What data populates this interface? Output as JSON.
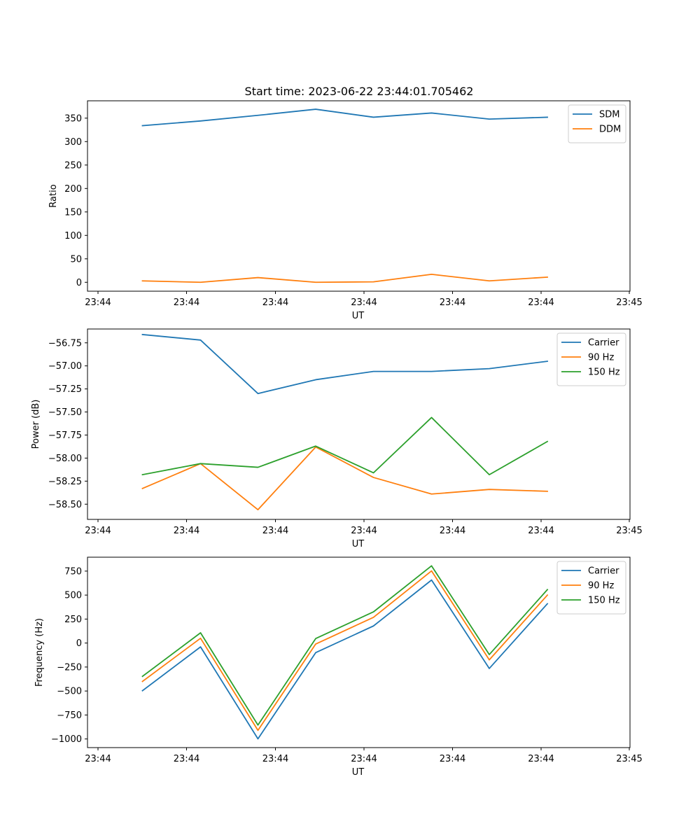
{
  "title": "Start time: 2023-06-22 23:44:01.705462",
  "chart_data": [
    {
      "type": "line",
      "title": "Start time: 2023-06-22 23:44:01.705462",
      "xlabel": "UT",
      "ylabel": "Ratio",
      "x_tick_labels": [
        "23:44",
        "23:44",
        "23:44",
        "23:44",
        "23:44",
        "23:44",
        "23:45"
      ],
      "y_ticks": [
        0,
        50,
        100,
        150,
        200,
        250,
        300,
        350
      ],
      "ylim": [
        -19,
        387
      ],
      "legend_position": "upper-right",
      "series": [
        {
          "name": "SDM",
          "color": "#1f77b4",
          "values": [
            334,
            344,
            356,
            369,
            352,
            361,
            348,
            352
          ]
        },
        {
          "name": "DDM",
          "color": "#ff7f0e",
          "values": [
            3,
            0,
            10,
            0,
            1,
            17,
            3,
            11
          ]
        }
      ]
    },
    {
      "type": "line",
      "title": "",
      "xlabel": "UT",
      "ylabel": "Power (dB)",
      "x_tick_labels": [
        "23:44",
        "23:44",
        "23:44",
        "23:44",
        "23:44",
        "23:44",
        "23:45"
      ],
      "y_ticks": [
        -58.5,
        -58.25,
        -58.0,
        -57.75,
        -57.5,
        -57.25,
        -57.0,
        -56.75
      ],
      "y_tick_labels": [
        "−58.50",
        "−58.25",
        "−58.00",
        "−57.75",
        "−57.50",
        "−57.25",
        "−57.00",
        "−56.75"
      ],
      "ylim": [
        -58.665,
        -56.6
      ],
      "legend_position": "upper-right",
      "series": [
        {
          "name": "Carrier",
          "color": "#1f77b4",
          "values": [
            -56.66,
            -56.72,
            -57.3,
            -57.15,
            -57.06,
            -57.06,
            -57.03,
            -56.95
          ]
        },
        {
          "name": "90 Hz",
          "color": "#ff7f0e",
          "values": [
            -58.33,
            -58.06,
            -58.56,
            -57.88,
            -58.21,
            -58.39,
            -58.34,
            -58.36
          ]
        },
        {
          "name": "150 Hz",
          "color": "#2ca02c",
          "values": [
            -58.18,
            -58.06,
            -58.1,
            -57.87,
            -58.16,
            -57.56,
            -58.18,
            -57.82
          ]
        }
      ]
    },
    {
      "type": "line",
      "title": "",
      "xlabel": "UT",
      "ylabel": "Frequency (Hz)",
      "x_tick_labels": [
        "23:44",
        "23:44",
        "23:44",
        "23:44",
        "23:44",
        "23:44",
        "23:45"
      ],
      "y_ticks": [
        -1000,
        -750,
        -500,
        -250,
        0,
        250,
        500,
        750
      ],
      "y_tick_labels": [
        "−1000",
        "−750",
        "−500",
        "−250",
        "0",
        "250",
        "500",
        "750"
      ],
      "ylim": [
        -1090,
        895
      ],
      "legend_position": "upper-right",
      "series": [
        {
          "name": "Carrier",
          "color": "#1f77b4",
          "values": [
            -497,
            -40,
            -999,
            -100,
            178,
            657,
            -265,
            410
          ]
        },
        {
          "name": "90 Hz",
          "color": "#ff7f0e",
          "values": [
            -400,
            50,
            -910,
            -10,
            268,
            752,
            -175,
            500
          ]
        },
        {
          "name": "150 Hz",
          "color": "#2ca02c",
          "values": [
            -347,
            107,
            -855,
            47,
            325,
            805,
            -120,
            557
          ]
        }
      ]
    }
  ]
}
